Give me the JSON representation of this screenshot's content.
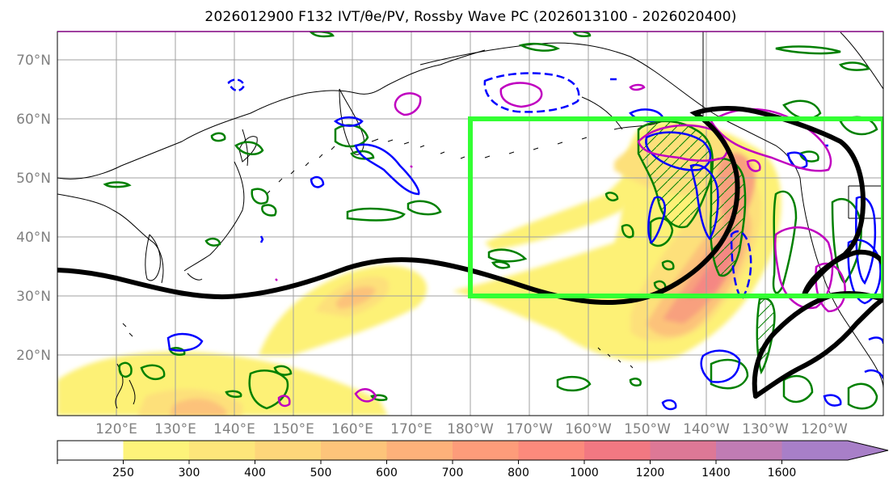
{
  "title": "2026012900 F132 IVT/θe/PV, Rossby Wave PC (2026013100 - 2026020400)",
  "lat_labels": [
    "70°N",
    "60°N",
    "50°N",
    "40°N",
    "30°N",
    "20°N"
  ],
  "lon_labels": [
    "120°E",
    "130°E",
    "140°E",
    "150°E",
    "160°E",
    "170°E",
    "180°W",
    "170°W",
    "160°W",
    "150°W",
    "140°W",
    "130°W",
    "120°W"
  ],
  "colorbar": {
    "levels": [
      "250",
      "300",
      "400",
      "500",
      "600",
      "700",
      "800",
      "1000",
      "1200",
      "1400",
      "1600"
    ],
    "colors": [
      "#ffffff",
      "#fdf37a",
      "#fde67a",
      "#fdd67a",
      "#fdc47a",
      "#fdb17a",
      "#fd9c7a",
      "#fc8a7c",
      "#f27882",
      "#dd7896",
      "#c07cb4",
      "#a87fc8"
    ]
  },
  "colors": {
    "ivt_low": "#fdf176",
    "ivt_mid": "#fcc07a",
    "ivt_high": "#f58783",
    "rossby_box": "#33ff33",
    "theta_e_contour": "#000000",
    "pv_blue": "#0000ff",
    "pv_green": "#008000",
    "pv_magenta": "#c000c0",
    "grid": "#a0a0a0",
    "coast": "#000000"
  }
}
